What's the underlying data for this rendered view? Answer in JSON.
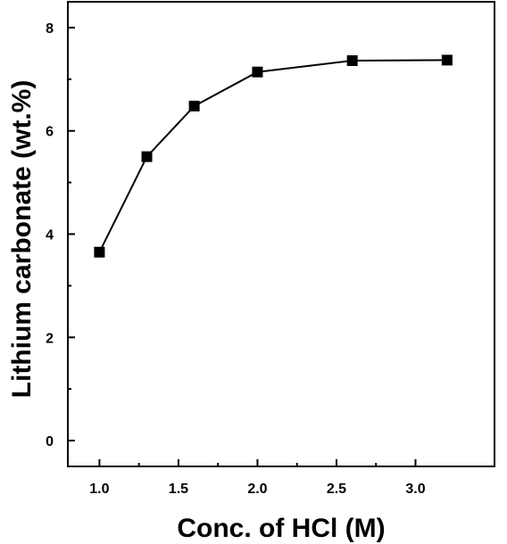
{
  "chart_data": {
    "type": "line",
    "title": "",
    "xlabel": "Conc. of HCl (M)",
    "ylabel": "Lithium carbonate (wt.%)",
    "xlim": [
      0.8,
      3.5
    ],
    "ylim": [
      -0.5,
      8.5
    ],
    "x_ticks": [
      1.0,
      1.5,
      2.0,
      2.5,
      3.0
    ],
    "x_tick_labels": [
      "1.0",
      "1.5",
      "2.0",
      "2.5",
      "3.0"
    ],
    "y_ticks": [
      0,
      2,
      4,
      6,
      8
    ],
    "y_tick_labels": [
      "0",
      "2",
      "4",
      "6",
      "8"
    ],
    "grid": false,
    "marker": "square",
    "series": [
      {
        "x": [
          1.0,
          1.3,
          1.6,
          2.0,
          2.6,
          3.2
        ],
        "values": [
          3.65,
          5.5,
          6.48,
          7.14,
          7.36,
          7.37
        ]
      }
    ],
    "colors": {
      "line": "#000000",
      "marker": "#000000"
    }
  }
}
